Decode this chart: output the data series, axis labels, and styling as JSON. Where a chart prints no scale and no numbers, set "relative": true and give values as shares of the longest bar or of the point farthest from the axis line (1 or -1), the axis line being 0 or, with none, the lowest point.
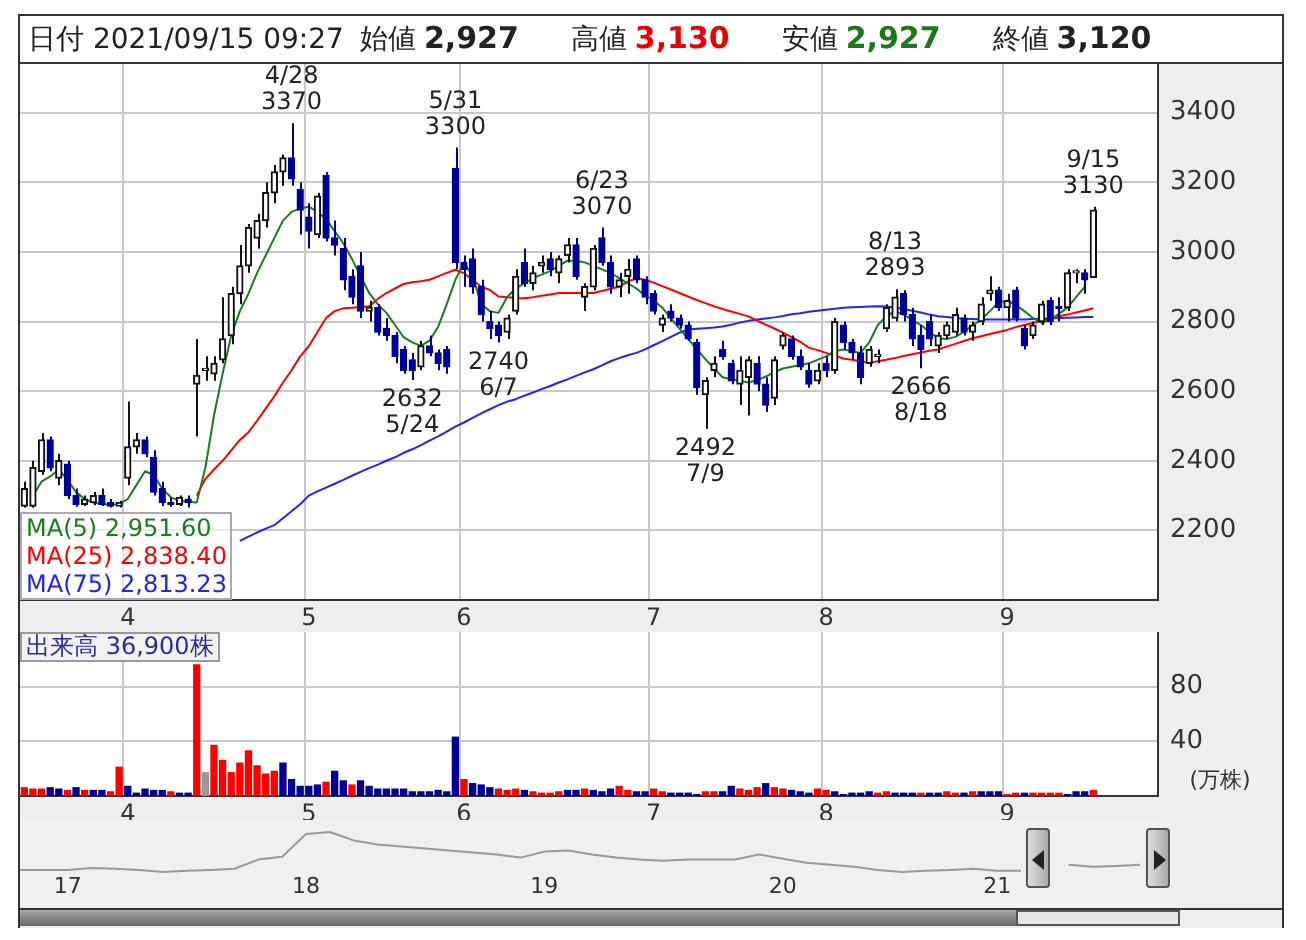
{
  "chart_data": [
    {
      "type": "candlestick",
      "title": "日付 2021/09/15 09:27",
      "annotations": [
        "始値 2,927",
        "高値 3,130",
        "安値 2,927",
        "終値 3,120",
        {
          "text": "4/28\n3370",
          "y": 3370
        },
        {
          "text": "5/31\n3300",
          "y": 3300
        },
        {
          "text": "6/23\n3070",
          "y": 3070
        },
        {
          "text": "8/13\n2893",
          "y": 2893
        },
        {
          "text": "9/15\n3130",
          "y": 3130
        },
        {
          "text": "2632\n5/24",
          "y": 2632
        },
        {
          "text": "2740\n6/7",
          "y": 2740
        },
        {
          "text": "2492\n7/9",
          "y": 2492
        },
        {
          "text": "2666\n8/18",
          "y": 2666
        }
      ],
      "categories": [
        null,
        null,
        null,
        null,
        null,
        null,
        null,
        null,
        null,
        null,
        null,
        null,
        "4",
        null,
        null,
        null,
        null,
        null,
        null,
        null,
        null,
        null,
        null,
        null,
        null,
        null,
        null,
        null,
        null,
        null,
        null,
        null,
        null,
        "5",
        null,
        null,
        null,
        null,
        null,
        null,
        null,
        null,
        null,
        null,
        null,
        null,
        null,
        null,
        null,
        null,
        null,
        "6",
        null,
        null,
        null,
        null,
        null,
        null,
        null,
        null,
        null,
        null,
        null,
        null,
        null,
        null,
        null,
        null,
        null,
        null,
        null,
        null,
        null,
        "7",
        null,
        null,
        null,
        null,
        null,
        null,
        null,
        null,
        null,
        null,
        null,
        null,
        null,
        null,
        null,
        null,
        null,
        null,
        null,
        "8",
        null,
        null,
        null,
        null,
        null,
        null,
        null,
        null,
        null,
        null,
        null,
        null,
        null,
        null,
        null,
        null,
        null,
        null,
        null,
        null,
        "9",
        null,
        null,
        null,
        null,
        null,
        null,
        null,
        null,
        null,
        null
      ],
      "ohlc": [
        [
          2270,
          2340,
          2265,
          2320
        ],
        [
          2270,
          2400,
          2265,
          2380
        ],
        [
          2370,
          2480,
          2360,
          2460
        ],
        [
          2460,
          2470,
          2370,
          2380
        ],
        [
          2350,
          2420,
          2330,
          2400
        ],
        [
          2390,
          2400,
          2290,
          2300
        ],
        [
          2300,
          2320,
          2268,
          2275
        ],
        [
          2275,
          2300,
          2270,
          2290
        ],
        [
          2280,
          2310,
          2272,
          2300
        ],
        [
          2300,
          2320,
          2270,
          2275
        ],
        [
          2280,
          2290,
          2266,
          2270
        ],
        [
          2270,
          2285,
          2266,
          2280
        ],
        [
          2350,
          2570,
          2330,
          2440
        ],
        [
          2440,
          2480,
          2420,
          2460
        ],
        [
          2460,
          2470,
          2410,
          2420
        ],
        [
          2410,
          2430,
          2300,
          2310
        ],
        [
          2320,
          2340,
          2270,
          2280
        ],
        [
          2280,
          2295,
          2268,
          2275
        ],
        [
          2275,
          2300,
          2270,
          2295
        ],
        [
          2290,
          2300,
          2266,
          2280
        ],
        [
          2620,
          2750,
          2470,
          2645
        ],
        [
          2660,
          2700,
          2630,
          2660
        ],
        [
          2650,
          2700,
          2630,
          2680
        ],
        [
          2690,
          2870,
          2680,
          2750
        ],
        [
          2760,
          2900,
          2735,
          2880
        ],
        [
          2880,
          3020,
          2850,
          2960
        ],
        [
          2960,
          3080,
          2940,
          3070
        ],
        [
          3040,
          3110,
          3010,
          3090
        ],
        [
          3090,
          3200,
          3070,
          3170
        ],
        [
          3170,
          3250,
          3140,
          3230
        ],
        [
          3230,
          3280,
          3190,
          3270
        ],
        [
          3270,
          3370,
          3190,
          3210
        ],
        [
          3180,
          3200,
          3050,
          3120
        ],
        [
          3100,
          3140,
          3010,
          3060
        ],
        [
          3050,
          3170,
          3040,
          3160
        ],
        [
          3220,
          3230,
          3030,
          3040
        ],
        [
          3040,
          3090,
          2990,
          3020
        ],
        [
          3010,
          3040,
          2890,
          2920
        ],
        [
          2930,
          2950,
          2850,
          2870
        ],
        [
          2960,
          3000,
          2810,
          2830
        ],
        [
          2830,
          2860,
          2800,
          2840
        ],
        [
          2840,
          2850,
          2760,
          2770
        ],
        [
          2780,
          2810,
          2745,
          2760
        ],
        [
          2760,
          2770,
          2680,
          2700
        ],
        [
          2720,
          2730,
          2650,
          2660
        ],
        [
          2690,
          2710,
          2632,
          2660
        ],
        [
          2670,
          2745,
          2660,
          2730
        ],
        [
          2730,
          2760,
          2700,
          2710
        ],
        [
          2710,
          2720,
          2660,
          2680
        ],
        [
          2720,
          2730,
          2650,
          2670
        ],
        [
          3240,
          3300,
          2950,
          2970
        ],
        [
          2970,
          2990,
          2900,
          2950
        ],
        [
          2980,
          3010,
          2880,
          2900
        ],
        [
          2900,
          2920,
          2800,
          2820
        ],
        [
          2800,
          2830,
          2750,
          2780
        ],
        [
          2790,
          2800,
          2740,
          2760
        ],
        [
          2770,
          2820,
          2750,
          2810
        ],
        [
          2830,
          2950,
          2820,
          2930
        ],
        [
          2970,
          3010,
          2900,
          2910
        ],
        [
          2910,
          2960,
          2890,
          2940
        ],
        [
          2960,
          2990,
          2940,
          2970
        ],
        [
          2980,
          3000,
          2930,
          2950
        ],
        [
          2940,
          2990,
          2910,
          2980
        ],
        [
          2990,
          3040,
          2970,
          3020
        ],
        [
          3020,
          3040,
          2920,
          2930
        ],
        [
          2870,
          2910,
          2830,
          2900
        ],
        [
          2900,
          3020,
          2890,
          3010
        ],
        [
          3040,
          3070,
          2960,
          2970
        ],
        [
          2970,
          2990,
          2880,
          2900
        ],
        [
          2900,
          2940,
          2870,
          2920
        ],
        [
          2930,
          2980,
          2880,
          2950
        ],
        [
          2980,
          2990,
          2910,
          2920
        ],
        [
          2920,
          2930,
          2850,
          2870
        ],
        [
          2880,
          2890,
          2820,
          2830
        ],
        [
          2790,
          2820,
          2770,
          2810
        ],
        [
          2830,
          2850,
          2800,
          2810
        ],
        [
          2810,
          2820,
          2780,
          2790
        ],
        [
          2790,
          2800,
          2745,
          2750
        ],
        [
          2740,
          2750,
          2590,
          2610
        ],
        [
          2590,
          2640,
          2492,
          2630
        ],
        [
          2660,
          2700,
          2640,
          2680
        ],
        [
          2720,
          2745,
          2690,
          2700
        ],
        [
          2680,
          2690,
          2620,
          2630
        ],
        [
          2620,
          2700,
          2560,
          2660
        ],
        [
          2640,
          2700,
          2530,
          2690
        ],
        [
          2680,
          2700,
          2600,
          2620
        ],
        [
          2620,
          2640,
          2540,
          2560
        ],
        [
          2580,
          2700,
          2560,
          2690
        ],
        [
          2730,
          2770,
          2720,
          2760
        ],
        [
          2750,
          2760,
          2690,
          2700
        ],
        [
          2700,
          2720,
          2660,
          2670
        ],
        [
          2660,
          2680,
          2610,
          2620
        ],
        [
          2630,
          2680,
          2620,
          2660
        ],
        [
          2680,
          2700,
          2640,
          2660
        ],
        [
          2660,
          2810,
          2650,
          2800
        ],
        [
          2790,
          2800,
          2720,
          2740
        ],
        [
          2740,
          2750,
          2690,
          2710
        ],
        [
          2710,
          2730,
          2620,
          2640
        ],
        [
          2680,
          2730,
          2670,
          2720
        ],
        [
          2700,
          2720,
          2680,
          2700
        ],
        [
          2780,
          2850,
          2770,
          2840
        ],
        [
          2810,
          2893,
          2800,
          2870
        ],
        [
          2880,
          2890,
          2800,
          2820
        ],
        [
          2820,
          2840,
          2730,
          2750
        ],
        [
          2760,
          2790,
          2666,
          2720
        ],
        [
          2800,
          2820,
          2730,
          2750
        ],
        [
          2730,
          2770,
          2710,
          2760
        ],
        [
          2760,
          2800,
          2750,
          2790
        ],
        [
          2770,
          2840,
          2760,
          2820
        ],
        [
          2810,
          2820,
          2760,
          2770
        ],
        [
          2770,
          2800,
          2745,
          2790
        ],
        [
          2800,
          2870,
          2790,
          2850
        ],
        [
          2880,
          2930,
          2860,
          2890
        ],
        [
          2890,
          2900,
          2830,
          2840
        ],
        [
          2840,
          2880,
          2800,
          2860
        ],
        [
          2890,
          2900,
          2800,
          2810
        ],
        [
          2780,
          2790,
          2720,
          2730
        ],
        [
          2760,
          2800,
          2750,
          2790
        ],
        [
          2800,
          2860,
          2790,
          2850
        ],
        [
          2860,
          2870,
          2790,
          2800
        ],
        [
          2840,
          2870,
          2800,
          2838
        ],
        [
          2840,
          2950,
          2830,
          2940
        ],
        [
          2940,
          2950,
          2910,
          2940
        ],
        [
          2940,
          2950,
          2880,
          2920
        ],
        [
          2927,
          3130,
          2927,
          3120
        ]
      ],
      "series": [
        {
          "type": "line",
          "name": "MA(5) 2,951.60",
          "color": "#1f7a1f",
          "values": [
            null,
            2300,
            2340,
            2355,
            2375,
            2345,
            2310,
            2290,
            2280,
            2276,
            2274,
            2276,
            2290,
            2330,
            2370,
            2360,
            2320,
            2295,
            2285,
            2282,
            2280,
            2380,
            2530,
            2650,
            2760,
            2830,
            2880,
            2940,
            2990,
            3040,
            3090,
            3115,
            3125,
            3130,
            3115,
            3095,
            3060,
            3025,
            2980,
            2930,
            2882,
            2850,
            2825,
            2790,
            2755,
            2740,
            2730,
            2745,
            2785,
            2850,
            2920,
            2970,
            2930,
            2850,
            2830,
            2825,
            2870,
            2895,
            2910,
            2925,
            2935,
            2945,
            2960,
            2975,
            2975,
            2970,
            2960,
            2950,
            2940,
            2925,
            2910,
            2895,
            2875,
            2860,
            2840,
            2810,
            2780,
            2750,
            2720,
            2692,
            2665,
            2640,
            2634,
            2630,
            2625,
            2632,
            2642,
            2655,
            2665,
            2670,
            2675,
            2680,
            2690,
            2700,
            2715,
            2720,
            2715,
            2710,
            2740,
            2790,
            2815,
            2830,
            2820,
            2805,
            2790,
            2770,
            2752,
            2750,
            2756,
            2770,
            2790,
            2805,
            2830,
            2855,
            2860,
            2848,
            2830,
            2810,
            2796,
            2805,
            2822,
            2840,
            2870,
            2900,
            null
          ]
        },
        {
          "type": "line",
          "name": "MA(25) 2,838.40",
          "color": "#ff0000",
          "values": [
            null,
            null,
            null,
            null,
            null,
            null,
            null,
            null,
            null,
            null,
            null,
            null,
            null,
            null,
            null,
            null,
            null,
            null,
            null,
            null,
            2300,
            2348,
            2375,
            2400,
            2430,
            2460,
            2482,
            2515,
            2550,
            2585,
            2625,
            2660,
            2700,
            2729,
            2770,
            2810,
            2830,
            2838,
            2840,
            2842,
            2844,
            2865,
            2882,
            2895,
            2908,
            2913,
            2916,
            2920,
            2930,
            2940,
            2949,
            2939,
            2920,
            2900,
            2891,
            2872,
            2870,
            2868,
            2867,
            2870,
            2874,
            2878,
            2882,
            2882,
            2882,
            2882,
            2882,
            2888,
            2894,
            2900,
            2915,
            2924,
            2920,
            2912,
            2902,
            2892,
            2882,
            2872,
            2862,
            2853,
            2844,
            2836,
            2829,
            2822,
            2815,
            2803,
            2791,
            2780,
            2768,
            2755,
            2742,
            2725,
            2718,
            2710,
            2702,
            2694,
            2690,
            2686,
            2682,
            2686,
            2690,
            2695,
            2701,
            2706,
            2711,
            2716,
            2720,
            2728,
            2736,
            2744,
            2752,
            2758,
            2764,
            2770,
            2776,
            2784,
            2790,
            2796,
            2802,
            2808,
            2815,
            2820,
            2826,
            2832,
            2838
          ]
        },
        {
          "type": "line",
          "name": "MA(75) 2,813.23",
          "color": "#2222ff",
          "values": [
            null,
            null,
            null,
            null,
            null,
            null,
            null,
            null,
            null,
            null,
            null,
            null,
            null,
            null,
            null,
            null,
            null,
            null,
            null,
            null,
            null,
            null,
            null,
            null,
            null,
            2170,
            2182,
            2194,
            2205,
            2215,
            2235,
            2255,
            2275,
            2300,
            2312,
            2323,
            2334,
            2345,
            2357,
            2368,
            2379,
            2389,
            2400,
            2410,
            2423,
            2433,
            2445,
            2458,
            2470,
            2484,
            2498,
            2510,
            2523,
            2536,
            2548,
            2560,
            2570,
            2577,
            2587,
            2596,
            2606,
            2615,
            2625,
            2634,
            2644,
            2654,
            2663,
            2674,
            2686,
            2695,
            2703,
            2710,
            2720,
            2732,
            2744,
            2756,
            2768,
            2777,
            2779,
            2781,
            2783,
            2786,
            2791,
            2797,
            2802,
            2806,
            2809,
            2812,
            2816,
            2821,
            2824,
            2828,
            2831,
            2834,
            2837,
            2840,
            2841,
            2842,
            2843,
            2844,
            2843,
            2840,
            2836,
            2831,
            2826,
            2820,
            2815,
            2813,
            2810,
            2808,
            2807,
            2806,
            2806,
            2806,
            2806,
            2806,
            2806,
            2807,
            2808,
            2809,
            2810,
            2811,
            2812,
            2813,
            2813
          ]
        }
      ],
      "ylim": [
        2000,
        3540
      ],
      "yticks": [
        2200,
        2400,
        2600,
        2800,
        3000,
        3200,
        3400
      ],
      "grid": true
    },
    {
      "type": "bar",
      "title": "出来高 36,900株",
      "ylabel": "(万株)",
      "categories": [
        null,
        null,
        null,
        null,
        null,
        null,
        null,
        null,
        null,
        null,
        null,
        null,
        "4",
        null,
        null,
        null,
        null,
        null,
        null,
        null,
        null,
        null,
        null,
        null,
        null,
        null,
        null,
        null,
        null,
        null,
        null,
        null,
        null,
        "5",
        null,
        null,
        null,
        null,
        null,
        null,
        null,
        null,
        null,
        null,
        null,
        null,
        null,
        null,
        null,
        null,
        null,
        "6",
        null,
        null,
        null,
        null,
        null,
        null,
        null,
        null,
        null,
        null,
        null,
        null,
        null,
        null,
        null,
        null,
        null,
        null,
        null,
        null,
        null,
        "7",
        null,
        null,
        null,
        null,
        null,
        null,
        null,
        null,
        null,
        null,
        null,
        null,
        null,
        null,
        null,
        null,
        null,
        null,
        null,
        "8",
        null,
        null,
        null,
        null,
        null,
        null,
        null,
        null,
        null,
        null,
        null,
        null,
        null,
        null,
        null,
        null,
        null,
        null,
        null,
        null,
        "9",
        null,
        null,
        null,
        null,
        null,
        null,
        null,
        null,
        null,
        null
      ],
      "values": [
        6,
        5,
        5,
        6,
        5,
        4,
        6,
        4,
        4,
        4,
        3,
        21,
        7,
        2,
        5,
        4,
        4,
        3,
        2,
        2,
        96,
        17,
        37,
        26,
        17,
        24,
        33,
        22,
        16,
        18,
        24,
        12,
        7,
        7,
        8,
        10,
        18,
        11,
        8,
        11,
        7,
        5,
        5,
        5,
        5,
        3,
        3,
        3,
        4,
        3,
        43,
        12,
        9,
        8,
        6,
        5,
        4,
        5,
        4,
        3,
        2,
        2,
        3,
        4,
        4,
        5,
        4,
        3,
        5,
        7,
        4,
        3,
        3,
        5,
        3,
        2,
        2,
        2,
        1,
        3,
        3,
        3,
        7,
        5,
        4,
        6,
        9,
        6,
        5,
        4,
        3,
        2,
        5,
        4,
        3,
        1,
        2,
        2,
        3,
        2,
        3,
        2,
        2,
        2,
        2,
        2,
        2,
        3,
        2,
        2,
        3,
        3,
        3,
        3,
        1,
        2,
        2,
        2,
        2,
        2,
        2,
        1,
        3,
        3,
        4
      ],
      "colors": [
        "#ff0000",
        "#ff0000",
        "#ff0000",
        "#000099",
        "#000099",
        "#ff0000",
        "#000099",
        "#ff0000",
        "#000099",
        "#000099",
        "#ff0000",
        "#ff0000",
        "#000099",
        "#000099",
        "#000099",
        "#000099",
        "#000099",
        "#ff0000",
        "#000099",
        "#000099",
        "#ff0000",
        "#999999",
        "#ff0000",
        "#ff0000",
        "#ff0000",
        "#ff0000",
        "#ff0000",
        "#ff0000",
        "#ff0000",
        "#ff0000",
        "#000099",
        "#000099",
        "#000099",
        "#000099",
        "#000099",
        "#ff0000",
        "#000099",
        "#000099",
        "#ff0000",
        "#000099",
        "#000099",
        "#000099",
        "#000099",
        "#000099",
        "#000099",
        "#000099",
        "#000099",
        "#000099",
        "#000099",
        "#000099",
        "#000099",
        "#ff0000",
        "#000099",
        "#000099",
        "#000099",
        "#ff0000",
        "#ff0000",
        "#ff0000",
        "#000099",
        "#ff0000",
        "#ff0000",
        "#ff0000",
        "#ff0000",
        "#000099",
        "#000099",
        "#ff0000",
        "#000099",
        "#000099",
        "#000099",
        "#ff0000",
        "#ff0000",
        "#000099",
        "#000099",
        "#ff0000",
        "#ff0000",
        "#000099",
        "#000099",
        "#000099",
        "#000099",
        "#ff0000",
        "#ff0000",
        "#000099",
        "#000099",
        "#ff0000",
        "#ff0000",
        "#ff0000",
        "#000099",
        "#ff0000",
        "#ff0000",
        "#000099",
        "#000099",
        "#000099",
        "#ff0000",
        "#ff0000",
        "#000099",
        "#000099",
        "#000099",
        "#000099",
        "#000099",
        "#ff0000",
        "#ff0000",
        "#000099",
        "#000099",
        "#000099",
        "#ff0000",
        "#000099",
        "#000099",
        "#ff0000",
        "#ff0000",
        "#000099",
        "#ff0000",
        "#000099",
        "#000099",
        "#000099",
        "#ff0000",
        "#ff0000",
        "#000099",
        "#ff0000",
        "#ff0000",
        "#ff0000",
        "#ff0000",
        "#000099",
        "#000099",
        "#000099",
        "#ff0000"
      ],
      "ylim": [
        0,
        120
      ],
      "yticks": [
        40,
        80
      ],
      "grid": true
    },
    {
      "type": "line",
      "relative": true,
      "color": "#999999",
      "categories": [
        null,
        null,
        "17",
        null,
        null,
        null,
        null,
        null,
        null,
        null,
        null,
        null,
        "18",
        null,
        null,
        null,
        null,
        null,
        null,
        null,
        null,
        null,
        "19",
        null,
        null,
        null,
        null,
        null,
        null,
        null,
        null,
        null,
        "20",
        null,
        null,
        null,
        null,
        null,
        null,
        null,
        null,
        "21",
        null,
        null,
        null,
        null,
        null,
        null,
        null
      ],
      "values": [
        0.05,
        0.05,
        0.05,
        0.1,
        0.08,
        0.05,
        0,
        0.03,
        0.05,
        0.08,
        0.31,
        0.38,
        0.95,
        1,
        0.79,
        0.69,
        0.64,
        0.59,
        0.54,
        0.49,
        0.44,
        0.36,
        0.51,
        0.54,
        0.44,
        0.36,
        0.31,
        0.28,
        0.31,
        0.31,
        0.31,
        0.44,
        0.33,
        0.23,
        0.18,
        0.13,
        0.05,
        0,
        0.03,
        0.05,
        0.08,
        0.03,
        0.03,
        null,
        0.18,
        0.13,
        0.15,
        0.18,
        null
      ]
    }
  ]
}
